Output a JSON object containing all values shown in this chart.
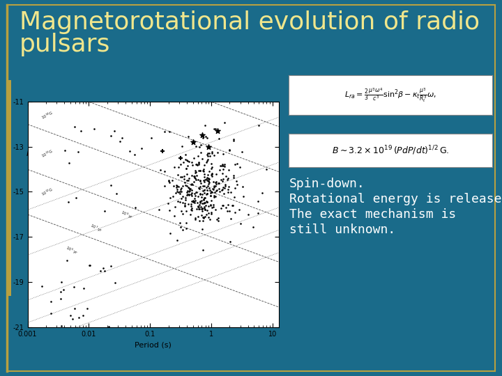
{
  "bg_color": "#1a6b8a",
  "title_line1": "Magnetorotational evolution of radio",
  "title_line2": "pulsars",
  "title_color": "#f0e68c",
  "title_fontsize": 26,
  "slide_border_color": "#b8a040",
  "text_line1": "Spin-down.",
  "text_line2": "Rotational energy is released.",
  "text_line3": "The exact mechanism is",
  "text_line4": "still unknown.",
  "text_color": "#ffffff",
  "text_fontsize": 13,
  "formula_bg": "#ffffff",
  "formula_border": "#999999",
  "plot_bg": "#ffffff",
  "xlabel": "Period (s)",
  "xmin": -3,
  "xmax": 1.1,
  "ymin": -21,
  "ymax": -11,
  "left_bar_color": "#b8a040"
}
